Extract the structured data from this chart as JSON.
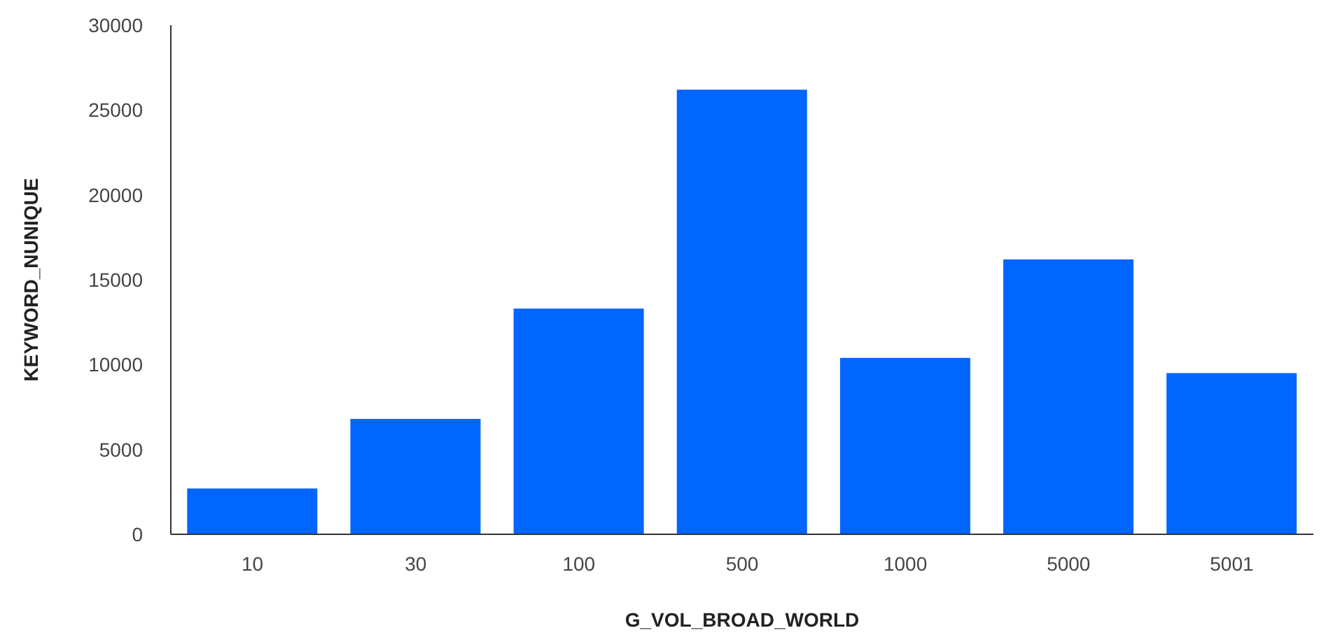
{
  "chart_data": {
    "type": "bar",
    "xlabel": "G_VOL_BROAD_WORLD",
    "ylabel": "KEYWORD_NUNIQUE",
    "categories": [
      "10",
      "30",
      "100",
      "500",
      "1000",
      "5000",
      "5001"
    ],
    "values": [
      2700,
      6800,
      13300,
      26200,
      10400,
      16200,
      9500
    ],
    "color": "#0066ff",
    "ylim": [
      0,
      30000
    ],
    "yticks": [
      0,
      5000,
      10000,
      15000,
      20000,
      25000,
      30000
    ],
    "grid": false,
    "legend": false
  }
}
